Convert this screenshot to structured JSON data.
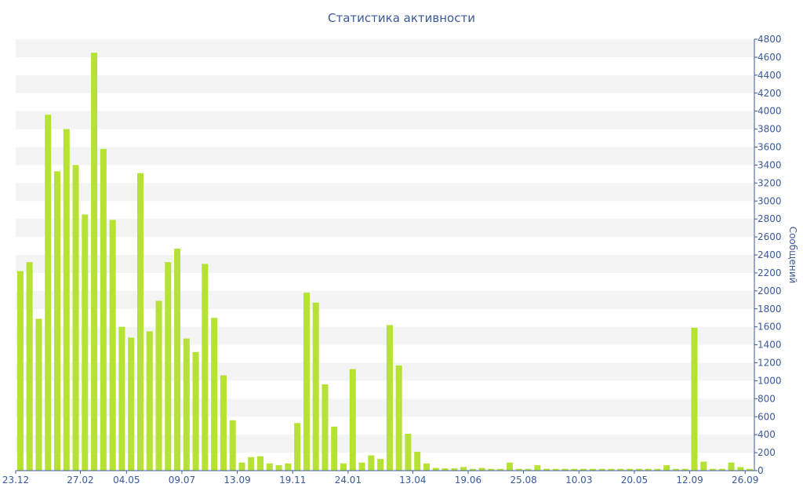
{
  "chart_data": {
    "type": "bar",
    "title": "Статистика активности",
    "ylabel": "Сообщений",
    "y_axis_side": "right",
    "ylim": [
      0,
      4800
    ],
    "yticks": [
      0,
      200,
      400,
      600,
      800,
      1000,
      1200,
      1400,
      1600,
      1800,
      2000,
      2200,
      2400,
      2600,
      2800,
      3000,
      3200,
      3400,
      3600,
      3800,
      4000,
      4200,
      4400,
      4600,
      4800
    ],
    "x_tick_labels": [
      "23.12",
      "27.02",
      "04.05",
      "09.07",
      "13.09",
      "19.11",
      "24.01",
      "13.04",
      "19.06",
      "25.08",
      "10.03",
      "20.05",
      "12.09",
      "26.09"
    ],
    "x_tick_positions": [
      0,
      7,
      12,
      18,
      24,
      30,
      36,
      43,
      49,
      55,
      61,
      67,
      73,
      79
    ],
    "values": [
      2220,
      2320,
      1690,
      3960,
      3330,
      3800,
      3400,
      2850,
      4650,
      3580,
      2790,
      1600,
      1480,
      3310,
      1550,
      1890,
      2320,
      2470,
      1470,
      1320,
      2300,
      1700,
      1060,
      560,
      90,
      150,
      160,
      80,
      60,
      80,
      530,
      1980,
      1870,
      960,
      490,
      80,
      1130,
      90,
      170,
      130,
      1620,
      1170,
      410,
      210,
      80,
      30,
      25,
      25,
      40,
      20,
      30,
      20,
      20,
      90,
      20,
      20,
      60,
      20,
      20,
      20,
      20,
      20,
      20,
      20,
      20,
      20,
      20,
      20,
      20,
      20,
      60,
      20,
      20,
      1590,
      100,
      20,
      20,
      90,
      40,
      20
    ],
    "bar_color": "#b5e234",
    "grid": "horizontal bands",
    "legend": "none"
  }
}
